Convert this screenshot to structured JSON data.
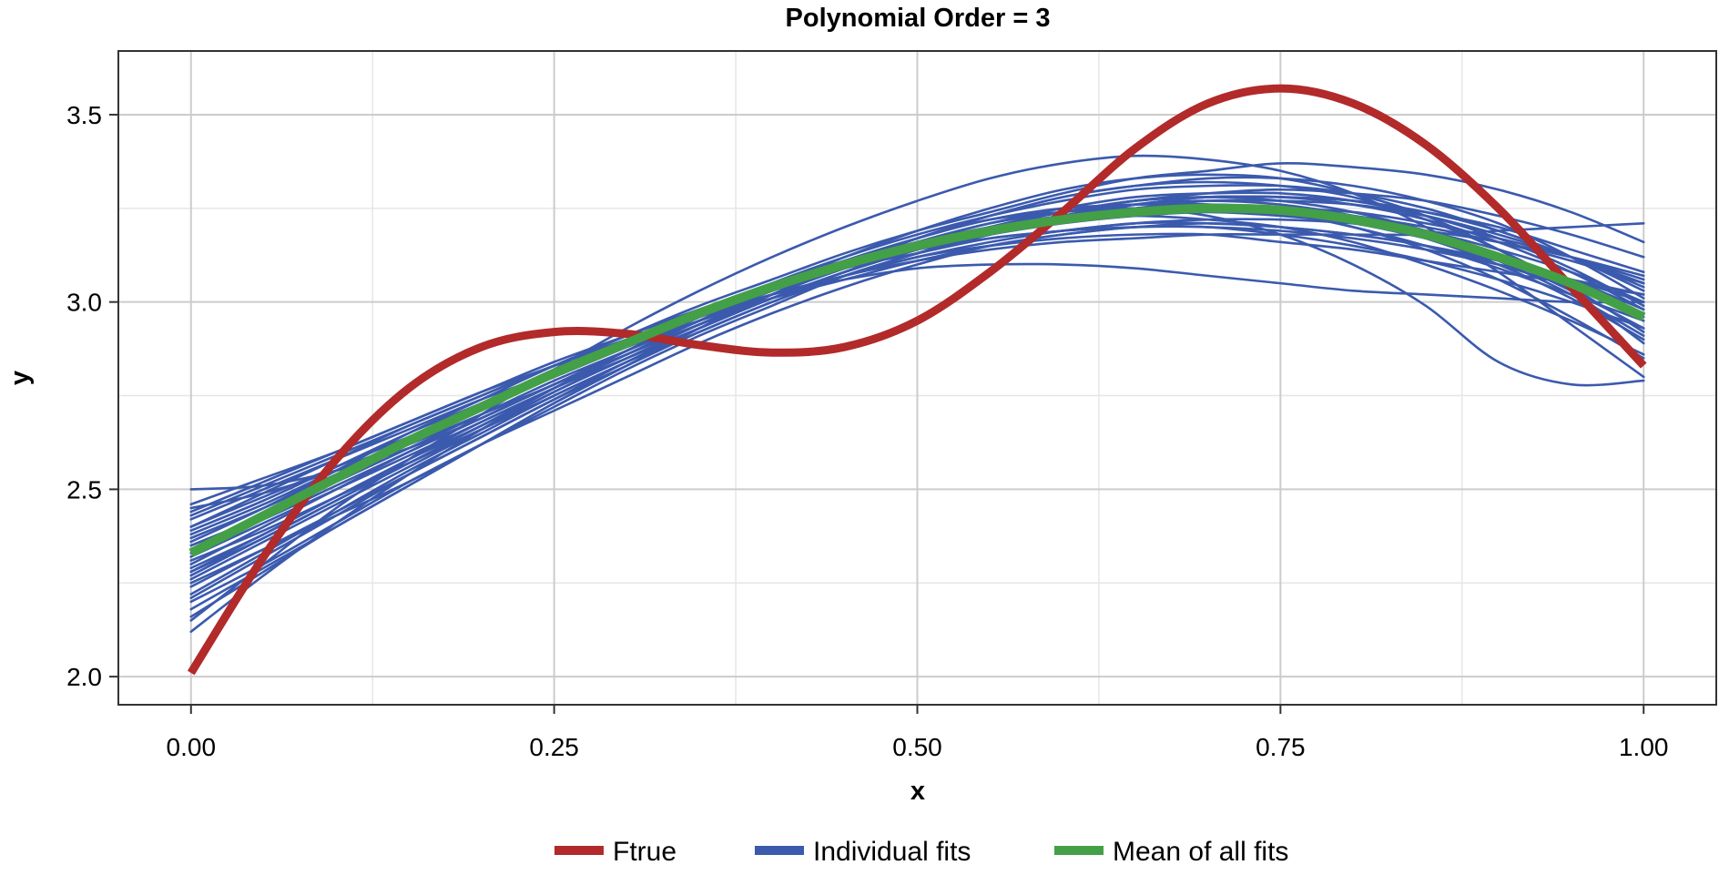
{
  "chart_data": {
    "type": "line",
    "title": "Polynomial Order = 3",
    "xlabel": "x",
    "ylabel": "y",
    "xlim": [
      -0.05,
      1.05
    ],
    "ylim": [
      1.925,
      3.67
    ],
    "x_ticks": [
      0.0,
      0.25,
      0.5,
      0.75,
      1.0
    ],
    "x_tick_labels": [
      "0.00",
      "0.25",
      "0.50",
      "0.75",
      "1.00"
    ],
    "y_ticks": [
      2.0,
      2.5,
      3.0,
      3.5
    ],
    "y_tick_labels": [
      "2.0",
      "2.5",
      "3.0",
      "3.5"
    ],
    "grid": true,
    "legend_position": "bottom",
    "legend": [
      {
        "label": "Ftrue",
        "color": "#b22a2a"
      },
      {
        "label": "Individual fits",
        "color": "#3b5aae"
      },
      {
        "label": "Mean of all fits",
        "color": "#43a047"
      }
    ],
    "series": [
      {
        "name": "Ftrue",
        "color": "#b22a2a",
        "x": [
          0.0,
          0.05,
          0.1,
          0.15,
          0.2,
          0.25,
          0.3,
          0.35,
          0.4,
          0.45,
          0.5,
          0.55,
          0.6,
          0.65,
          0.7,
          0.75,
          0.8,
          0.85,
          0.9,
          0.95,
          1.0
        ],
        "y": [
          2.01,
          2.32,
          2.58,
          2.77,
          2.88,
          2.92,
          2.915,
          2.885,
          2.865,
          2.88,
          2.95,
          3.08,
          3.24,
          3.41,
          3.53,
          3.57,
          3.53,
          3.42,
          3.25,
          3.04,
          2.83
        ]
      },
      {
        "name": "Mean of all fits",
        "color": "#43a047",
        "x": [
          0.0,
          0.05,
          0.1,
          0.15,
          0.2,
          0.25,
          0.3,
          0.35,
          0.4,
          0.45,
          0.5,
          0.55,
          0.6,
          0.65,
          0.7,
          0.75,
          0.8,
          0.85,
          0.9,
          0.95,
          1.0
        ],
        "y": [
          2.33,
          2.43,
          2.53,
          2.63,
          2.72,
          2.81,
          2.89,
          2.97,
          3.04,
          3.1,
          3.15,
          3.19,
          3.22,
          3.24,
          3.25,
          3.245,
          3.22,
          3.18,
          3.12,
          3.05,
          2.96
        ]
      }
    ],
    "individual_fits": {
      "name": "Individual fits",
      "color": "#3b5aae",
      "x": [
        0.0,
        0.05,
        0.1,
        0.15,
        0.2,
        0.25,
        0.3,
        0.35,
        0.4,
        0.45,
        0.5,
        0.55,
        0.6,
        0.65,
        0.7,
        0.75,
        0.8,
        0.85,
        0.9,
        0.95,
        1.0
      ],
      "curves": [
        [
          2.33,
          2.43,
          2.53,
          2.63,
          2.72,
          2.81,
          2.89,
          2.97,
          3.04,
          3.1,
          3.15,
          3.19,
          3.22,
          3.24,
          3.25,
          3.245,
          3.22,
          3.18,
          3.12,
          3.05,
          2.96
        ],
        [
          2.5,
          2.51,
          2.55,
          2.61,
          2.69,
          2.78,
          2.87,
          2.96,
          3.04,
          3.11,
          3.17,
          3.22,
          3.24,
          3.25,
          3.23,
          3.18,
          3.1,
          2.99,
          2.84,
          2.78,
          2.79
        ],
        [
          2.12,
          2.27,
          2.41,
          2.54,
          2.66,
          2.77,
          2.87,
          2.96,
          3.04,
          3.11,
          3.17,
          3.22,
          3.25,
          3.26,
          3.26,
          3.24,
          3.2,
          3.15,
          3.09,
          3.02,
          2.95
        ],
        [
          2.4,
          2.49,
          2.58,
          2.67,
          2.75,
          2.83,
          2.9,
          2.96,
          3.02,
          3.06,
          3.09,
          3.1,
          3.1,
          3.09,
          3.07,
          3.05,
          3.03,
          3.02,
          3.01,
          3.0,
          3.0
        ],
        [
          2.15,
          2.3,
          2.45,
          2.58,
          2.7,
          2.82,
          2.93,
          3.03,
          3.12,
          3.2,
          3.27,
          3.33,
          3.37,
          3.39,
          3.38,
          3.35,
          3.29,
          3.2,
          3.08,
          2.94,
          2.8
        ],
        [
          2.28,
          2.38,
          2.48,
          2.58,
          2.68,
          2.77,
          2.86,
          2.94,
          3.01,
          3.07,
          3.11,
          3.14,
          3.16,
          3.17,
          3.18,
          3.18,
          3.18,
          3.18,
          3.19,
          3.2,
          3.21
        ],
        [
          2.45,
          2.49,
          2.55,
          2.62,
          2.7,
          2.78,
          2.87,
          2.95,
          3.04,
          3.12,
          3.19,
          3.25,
          3.3,
          3.33,
          3.34,
          3.33,
          3.29,
          3.23,
          3.14,
          3.03,
          2.89
        ],
        [
          2.25,
          2.34,
          2.43,
          2.52,
          2.62,
          2.71,
          2.8,
          2.89,
          2.97,
          3.04,
          3.1,
          3.15,
          3.18,
          3.2,
          3.2,
          3.19,
          3.17,
          3.14,
          3.1,
          3.06,
          3.02
        ],
        [
          2.36,
          2.45,
          2.55,
          2.65,
          2.74,
          2.83,
          2.91,
          2.99,
          3.06,
          3.13,
          3.19,
          3.24,
          3.29,
          3.33,
          3.35,
          3.37,
          3.36,
          3.34,
          3.3,
          3.24,
          3.16
        ],
        [
          2.2,
          2.3,
          2.41,
          2.52,
          2.62,
          2.72,
          2.82,
          2.91,
          2.99,
          3.07,
          3.13,
          3.19,
          3.23,
          3.26,
          3.27,
          3.26,
          3.23,
          3.18,
          3.11,
          3.02,
          2.91
        ],
        [
          2.42,
          2.5,
          2.58,
          2.66,
          2.74,
          2.81,
          2.88,
          2.95,
          3.01,
          3.06,
          3.11,
          3.15,
          3.18,
          3.2,
          3.21,
          3.2,
          3.18,
          3.15,
          3.1,
          3.04,
          2.97
        ],
        [
          2.31,
          2.39,
          2.48,
          2.57,
          2.66,
          2.75,
          2.84,
          2.92,
          3.0,
          3.07,
          3.13,
          3.18,
          3.22,
          3.25,
          3.27,
          3.27,
          3.26,
          3.23,
          3.18,
          3.12,
          3.05
        ],
        [
          2.18,
          2.29,
          2.4,
          2.51,
          2.62,
          2.73,
          2.83,
          2.93,
          3.02,
          3.1,
          3.17,
          3.23,
          3.28,
          3.31,
          3.32,
          3.31,
          3.28,
          3.22,
          3.14,
          3.04,
          2.92
        ],
        [
          2.38,
          2.46,
          2.55,
          2.63,
          2.72,
          2.8,
          2.88,
          2.95,
          3.02,
          3.07,
          3.12,
          3.15,
          3.17,
          3.18,
          3.18,
          3.16,
          3.14,
          3.11,
          3.08,
          3.05,
          3.02
        ],
        [
          2.27,
          2.37,
          2.47,
          2.57,
          2.67,
          2.77,
          2.86,
          2.95,
          3.03,
          3.1,
          3.16,
          3.21,
          3.25,
          3.28,
          3.29,
          3.29,
          3.27,
          3.23,
          3.17,
          3.09,
          2.99
        ],
        [
          2.46,
          2.53,
          2.6,
          2.68,
          2.76,
          2.83,
          2.91,
          2.98,
          3.04,
          3.09,
          3.14,
          3.17,
          3.19,
          3.2,
          3.2,
          3.18,
          3.15,
          3.11,
          3.06,
          3.0,
          2.93
        ],
        [
          2.22,
          2.33,
          2.44,
          2.55,
          2.65,
          2.75,
          2.84,
          2.93,
          3.01,
          3.08,
          3.14,
          3.19,
          3.23,
          3.26,
          3.28,
          3.28,
          3.27,
          3.24,
          3.2,
          3.14,
          3.08
        ],
        [
          2.34,
          2.42,
          2.51,
          2.6,
          2.69,
          2.78,
          2.87,
          2.95,
          3.03,
          3.1,
          3.16,
          3.21,
          3.24,
          3.26,
          3.26,
          3.24,
          3.2,
          3.14,
          3.06,
          2.96,
          2.85
        ],
        [
          2.29,
          2.38,
          2.48,
          2.58,
          2.67,
          2.77,
          2.86,
          2.94,
          3.02,
          3.09,
          3.15,
          3.2,
          3.23,
          3.25,
          3.26,
          3.25,
          3.23,
          3.19,
          3.14,
          3.08,
          3.0
        ],
        [
          2.4,
          2.48,
          2.56,
          2.64,
          2.72,
          2.8,
          2.88,
          2.96,
          3.03,
          3.09,
          3.15,
          3.19,
          3.22,
          3.23,
          3.22,
          3.2,
          3.16,
          3.1,
          3.03,
          2.95,
          2.86
        ],
        [
          2.24,
          2.34,
          2.44,
          2.54,
          2.64,
          2.74,
          2.83,
          2.92,
          3.0,
          3.07,
          3.13,
          3.18,
          3.22,
          3.24,
          3.25,
          3.25,
          3.23,
          3.2,
          3.16,
          3.11,
          3.05
        ],
        [
          2.37,
          2.45,
          2.54,
          2.63,
          2.72,
          2.81,
          2.89,
          2.97,
          3.05,
          3.12,
          3.18,
          3.23,
          3.27,
          3.3,
          3.31,
          3.31,
          3.29,
          3.25,
          3.19,
          3.12,
          3.03
        ],
        [
          2.3,
          2.4,
          2.5,
          2.6,
          2.69,
          2.78,
          2.86,
          2.94,
          3.01,
          3.07,
          3.12,
          3.16,
          3.19,
          3.21,
          3.22,
          3.22,
          3.21,
          3.19,
          3.16,
          3.12,
          3.07
        ],
        [
          2.16,
          2.28,
          2.4,
          2.51,
          2.62,
          2.73,
          2.83,
          2.93,
          3.02,
          3.1,
          3.17,
          3.23,
          3.28,
          3.31,
          3.33,
          3.33,
          3.31,
          3.27,
          3.21,
          3.12,
          3.01
        ],
        [
          2.43,
          2.51,
          2.59,
          2.67,
          2.75,
          2.83,
          2.9,
          2.97,
          3.03,
          3.09,
          3.13,
          3.17,
          3.19,
          3.21,
          3.21,
          3.2,
          3.18,
          3.15,
          3.11,
          3.06,
          3.0
        ],
        [
          2.32,
          2.41,
          2.5,
          2.59,
          2.68,
          2.77,
          2.85,
          2.93,
          3.01,
          3.08,
          3.14,
          3.19,
          3.23,
          3.26,
          3.28,
          3.28,
          3.27,
          3.24,
          3.19,
          3.12,
          3.04
        ],
        [
          2.26,
          2.36,
          2.46,
          2.56,
          2.66,
          2.76,
          2.85,
          2.94,
          3.02,
          3.09,
          3.15,
          3.2,
          3.24,
          3.27,
          3.28,
          3.27,
          3.24,
          3.19,
          3.12,
          3.03,
          2.93
        ],
        [
          2.39,
          2.47,
          2.56,
          2.65,
          2.73,
          2.82,
          2.9,
          2.97,
          3.04,
          3.1,
          3.15,
          3.19,
          3.22,
          3.24,
          3.25,
          3.25,
          3.24,
          3.21,
          3.17,
          3.12,
          3.06
        ],
        [
          2.21,
          2.32,
          2.43,
          2.54,
          2.64,
          2.74,
          2.84,
          2.93,
          3.01,
          3.08,
          3.15,
          3.2,
          3.24,
          3.27,
          3.28,
          3.28,
          3.26,
          3.22,
          3.16,
          3.08,
          2.98
        ],
        [
          2.35,
          2.43,
          2.52,
          2.61,
          2.7,
          2.79,
          2.87,
          2.95,
          3.02,
          3.09,
          3.14,
          3.18,
          3.21,
          3.23,
          3.24,
          3.23,
          3.21,
          3.17,
          3.12,
          3.06,
          2.98
        ],
        [
          2.28,
          2.37,
          2.47,
          2.57,
          2.66,
          2.76,
          2.85,
          2.93,
          3.01,
          3.08,
          3.14,
          3.2,
          3.24,
          3.27,
          3.29,
          3.3,
          3.29,
          3.27,
          3.23,
          3.18,
          3.12
        ],
        [
          2.44,
          2.52,
          2.6,
          2.68,
          2.76,
          2.84,
          2.91,
          2.98,
          3.05,
          3.11,
          3.16,
          3.2,
          3.23,
          3.25,
          3.26,
          3.25,
          3.22,
          3.17,
          3.1,
          3.01,
          2.9
        ]
      ]
    }
  }
}
